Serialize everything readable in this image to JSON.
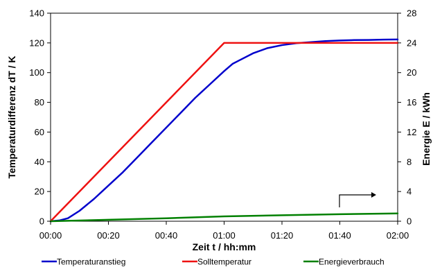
{
  "chart_data": {
    "type": "line",
    "title": "",
    "xlabel": "Zeit t / hh:mm",
    "ylabel": "Temperaturdifferenz dT / K",
    "y2label": "Energie E / kWh",
    "x_ticks": [
      "00:00",
      "00:20",
      "00:40",
      "01:00",
      "01:20",
      "01:40",
      "02:00"
    ],
    "x_range_minutes": [
      0,
      120
    ],
    "ylim": [
      0,
      140
    ],
    "y_ticks": [
      0,
      20,
      40,
      60,
      80,
      100,
      120,
      140
    ],
    "y2lim": [
      0,
      28
    ],
    "y2_ticks": [
      0,
      4,
      8,
      12,
      16,
      20,
      24,
      28
    ],
    "grid": false,
    "legend_position": "bottom",
    "series": [
      {
        "name": "Temperaturanstieg",
        "axis": "left",
        "color": "#0000cc",
        "x_minutes": [
          0,
          3,
          6,
          10,
          15,
          20,
          25,
          30,
          35,
          40,
          45,
          50,
          55,
          60,
          63,
          65,
          70,
          75,
          80,
          85,
          90,
          95,
          100,
          105,
          110,
          115,
          120
        ],
        "values": [
          0,
          0.5,
          2,
          7,
          15,
          24,
          33,
          43,
          53,
          63,
          73,
          83,
          92,
          101,
          106,
          108,
          113,
          116.5,
          118.5,
          119.8,
          120.5,
          121.2,
          121.6,
          121.9,
          122,
          122.2,
          122.3
        ]
      },
      {
        "name": "Solltemperatur",
        "axis": "left",
        "color": "#ee1111",
        "x_minutes": [
          0,
          60,
          120
        ],
        "values": [
          0,
          120,
          120
        ]
      },
      {
        "name": "Energieverbrauch",
        "axis": "right",
        "color": "#008000",
        "x_minutes": [
          0,
          20,
          40,
          60,
          80,
          100,
          120
        ],
        "values": [
          0,
          0.2,
          0.4,
          0.65,
          0.8,
          0.95,
          1.05
        ]
      }
    ],
    "annotation": {
      "type": "arrow-to-right-axis",
      "icon": "elbow-arrow-right-icon"
    }
  }
}
